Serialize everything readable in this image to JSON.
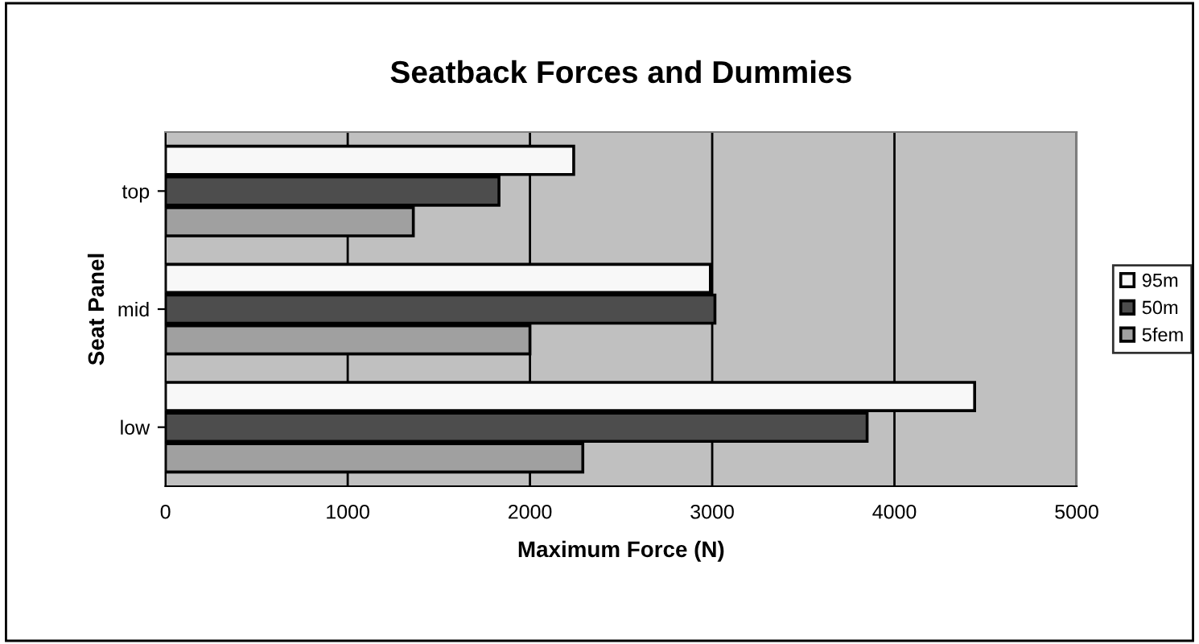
{
  "chart_data": {
    "type": "bar",
    "orientation": "horizontal",
    "title": "Seatback Forces and Dummies",
    "xlabel": "Maximum Force (N)",
    "ylabel": "Seat Panel",
    "categories": [
      "top",
      "mid",
      "low"
    ],
    "series": [
      {
        "name": "95m",
        "color": "#f8f8f8",
        "values": [
          2240,
          2990,
          4440
        ]
      },
      {
        "name": "50m",
        "color": "#4d4d4d",
        "values": [
          1830,
          3015,
          3850
        ]
      },
      {
        "name": "5fem",
        "color": "#a0a0a0",
        "values": [
          1360,
          2000,
          2290
        ]
      }
    ],
    "xlim": [
      0,
      5000
    ],
    "xticks": [
      0,
      1000,
      2000,
      3000,
      4000,
      5000
    ],
    "grid": "x",
    "legend": "right"
  }
}
